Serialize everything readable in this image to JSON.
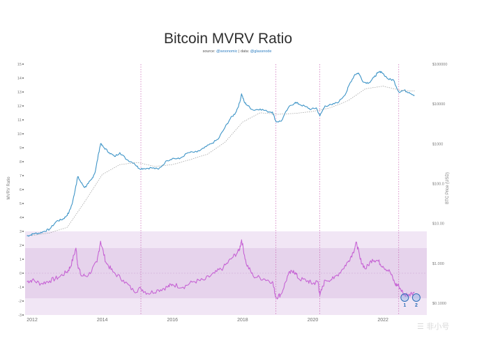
{
  "chart_data": {
    "type": "line",
    "title": "Bitcoin MVRV Ratio",
    "subtitle": {
      "source_label": "source:",
      "source_handle": "@woonomic",
      "data_label": "| data:",
      "data_handle": "@glassnode"
    },
    "ylabel_left": "MVRV Ratio",
    "ylabel_right": "BTC Price (USD)",
    "left_axis": {
      "ticks": [
        "15",
        "14",
        "13",
        "12",
        "11",
        "10",
        "9",
        "8",
        "7",
        "6",
        "5",
        "4",
        "3",
        "2",
        "1",
        "0",
        "-1",
        "-2",
        "-3"
      ]
    },
    "right_axis": {
      "scale": "log",
      "ticks": [
        "$100000",
        "$10000",
        "$1000",
        "$100.0",
        "$10.00",
        "$1.000",
        "$0.1000"
      ]
    },
    "x_axis": {
      "range": [
        2011.8,
        2023.25
      ],
      "ticks": [
        {
          "year": 2012,
          "label": "2012"
        },
        {
          "year": 2014,
          "label": "2014"
        },
        {
          "year": 2016,
          "label": "2016"
        },
        {
          "year": 2018,
          "label": "2018"
        },
        {
          "year": 2020,
          "label": "2020"
        },
        {
          "year": 2022,
          "label": "2022"
        }
      ]
    },
    "cycle_lines": [
      2015.1,
      2018.95,
      2020.2,
      2022.45
    ],
    "series": [
      {
        "name": "BTC Price (log USD)",
        "color": "#3d94c7",
        "x": [
          2011.85,
          2011.95,
          2012.05,
          2012.2,
          2012.35,
          2012.5,
          2012.7,
          2012.85,
          2012.95,
          2013.05,
          2013.15,
          2013.25,
          2013.3,
          2013.4,
          2013.5,
          2013.6,
          2013.7,
          2013.8,
          2013.9,
          2013.95,
          2014.05,
          2014.2,
          2014.35,
          2014.5,
          2014.7,
          2014.9,
          2015.05,
          2015.2,
          2015.4,
          2015.6,
          2015.85,
          2016.0,
          2016.2,
          2016.45,
          2016.7,
          2016.9,
          2017.1,
          2017.3,
          2017.5,
          2017.65,
          2017.8,
          2017.92,
          2017.97,
          2018.05,
          2018.15,
          2018.3,
          2018.5,
          2018.7,
          2018.85,
          2018.95,
          2019.1,
          2019.3,
          2019.5,
          2019.6,
          2019.8,
          2019.95,
          2020.1,
          2020.2,
          2020.35,
          2020.55,
          2020.75,
          2020.95,
          2021.05,
          2021.2,
          2021.3,
          2021.45,
          2021.6,
          2021.75,
          2021.85,
          2021.95,
          2022.15,
          2022.3,
          2022.45,
          2022.6,
          2022.75,
          2022.9
        ],
        "y": [
          4.9,
          5.1,
          5.6,
          5.7,
          6.4,
          7.2,
          11.5,
          12.5,
          14.5,
          19,
          33,
          90,
          150,
          105,
          80,
          100,
          130,
          200,
          600,
          1000,
          800,
          600,
          480,
          600,
          400,
          330,
          240,
          240,
          250,
          230,
          380,
          430,
          420,
          600,
          620,
          780,
          1000,
          1300,
          2600,
          4300,
          6000,
          11000,
          18000,
          11000,
          9000,
          7000,
          7500,
          6500,
          6300,
          3600,
          3700,
          8000,
          11000,
          10000,
          8500,
          7300,
          8000,
          5000,
          9000,
          9500,
          11500,
          19000,
          32000,
          55000,
          60000,
          35000,
          34000,
          47000,
          60000,
          65000,
          42000,
          40000,
          20000,
          22000,
          19500,
          16500
        ]
      },
      {
        "name": "Realized Price (log USD)",
        "color": "#999999",
        "x": [
          2012.0,
          2012.5,
          2013.0,
          2013.5,
          2014.0,
          2014.5,
          2015.0,
          2015.5,
          2016.0,
          2016.5,
          2017.0,
          2017.5,
          2018.0,
          2018.5,
          2019.0,
          2019.5,
          2020.0,
          2020.5,
          2021.0,
          2021.5,
          2022.0,
          2022.5,
          2022.9
        ],
        "y": [
          5.0,
          5.8,
          8.0,
          35,
          170,
          300,
          340,
          270,
          300,
          400,
          550,
          1100,
          3500,
          6000,
          5500,
          5800,
          6500,
          8000,
          12000,
          24000,
          28000,
          22000,
          21000
        ]
      },
      {
        "name": "MVRV Z-Score",
        "color": "#c663d4",
        "x": [
          2011.85,
          2012.0,
          2012.25,
          2012.5,
          2012.75,
          2013.0,
          2013.1,
          2013.25,
          2013.3,
          2013.4,
          2013.6,
          2013.85,
          2013.95,
          2014.1,
          2014.3,
          2014.6,
          2014.9,
          2015.1,
          2015.3,
          2015.6,
          2015.85,
          2016.0,
          2016.3,
          2016.6,
          2016.9,
          2017.2,
          2017.45,
          2017.7,
          2017.9,
          2017.97,
          2018.1,
          2018.3,
          2018.6,
          2018.85,
          2018.95,
          2019.1,
          2019.3,
          2019.45,
          2019.6,
          2019.85,
          2020.0,
          2020.15,
          2020.2,
          2020.35,
          2020.6,
          2020.85,
          2021.0,
          2021.15,
          2021.25,
          2021.35,
          2021.5,
          2021.7,
          2021.85,
          2022.0,
          2022.2,
          2022.35,
          2022.45,
          2022.6,
          2022.75,
          2022.9
        ],
        "y": [
          -0.6,
          -0.5,
          -0.75,
          -0.55,
          -0.3,
          0.1,
          0.5,
          1.8,
          0.6,
          -0.2,
          -0.15,
          0.8,
          2.3,
          0.8,
          0.1,
          -0.5,
          -1.3,
          -1.1,
          -1.45,
          -1.2,
          -1.0,
          -0.8,
          -1.0,
          -0.6,
          -0.5,
          0.0,
          0.4,
          1.1,
          1.6,
          2.4,
          0.7,
          -0.2,
          -0.4,
          -0.6,
          -1.75,
          -1.5,
          -0.1,
          0.2,
          -0.4,
          -0.55,
          -0.75,
          -0.6,
          -1.6,
          -0.5,
          -0.4,
          0.3,
          0.8,
          1.5,
          2.2,
          1.0,
          0.3,
          1.0,
          0.9,
          0.5,
          0.1,
          -0.8,
          -0.9,
          -1.55,
          -1.5,
          -1.35
        ]
      }
    ],
    "bands": [
      {
        "name": "outer band",
        "from": -3,
        "to": 3,
        "color": "#f1e6f5"
      },
      {
        "name": "inner band",
        "from": -1.8,
        "to": 1.8,
        "color": "#e6d3ec"
      }
    ],
    "annotations": [
      {
        "label": "1",
        "x": 2022.62,
        "y": -1.9
      },
      {
        "label": "2",
        "x": 2022.95,
        "y": -1.9
      }
    ],
    "watermark": "☰ 非小号"
  }
}
